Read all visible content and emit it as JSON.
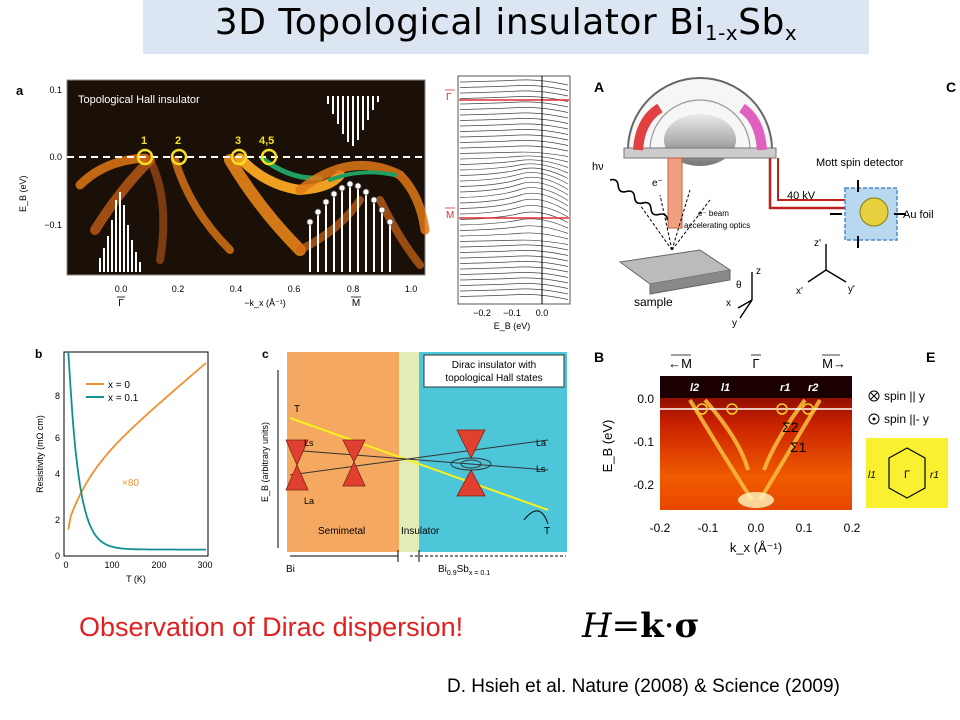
{
  "slide": {
    "title_main": "3D Topological insulator Bi",
    "title_sub1": "1-x",
    "title_mid": "Sb",
    "title_sub2": "x",
    "observation": "Observation of Dirac dispersion!",
    "equation": {
      "lhs": "H",
      "eq": "=",
      "k": "k",
      "dot": "·",
      "sigma": "σ"
    },
    "citation": "D. Hsieh et al. Nature (2008) & Science (2009)"
  },
  "panel_a": {
    "label": "a",
    "inset_title": "Topological Hall insulator",
    "crossings": [
      "1",
      "2",
      "3",
      "4,5"
    ],
    "y_axis_label": "E_B (eV)",
    "y_ticks": [
      "0.1",
      "0.0",
      "−0.1"
    ],
    "x_ticks": [
      "0.0",
      "0.2",
      "0.4",
      "0.6",
      "0.8",
      "1.0"
    ],
    "x_axis_label": "−k_x (Å⁻¹)",
    "gamma_label": "Γ",
    "m_label": "M",
    "colors": {
      "bg": "#1a1008",
      "band": "#f08a18",
      "hot": "#f8e040",
      "cool": "#20a060"
    }
  },
  "panel_edc": {
    "gamma_label": "Γ",
    "m_label": "M",
    "x_ticks": [
      "−0.2",
      "−0.1",
      "0.0"
    ],
    "x_axis_label": "E_B (eV)"
  },
  "panel_A": {
    "label": "A",
    "label_C": "C",
    "hv": "hν",
    "e_minus": "e⁻",
    "e_beam": "e⁻ beam",
    "beam_optics": "accelerating optics",
    "mott": "Mott spin detector",
    "kv": "40 kV",
    "au": "Au foil",
    "sample": "sample",
    "theta": "θ",
    "axes": {
      "x": "x",
      "y": "y",
      "z": "z",
      "xp": "x'",
      "yp": "y'",
      "zp": "z'"
    }
  },
  "panel_b": {
    "label": "b",
    "y_axis_label": "Resistivity (mΩ cm)",
    "x_axis_label": "T (K)",
    "legend": [
      "x = 0",
      "x = 0.1"
    ],
    "scale_note": "×80",
    "y_ticks": [
      "0",
      "2",
      "4",
      "6",
      "8"
    ],
    "x_ticks": [
      "0",
      "100",
      "200",
      "300"
    ]
  },
  "panel_c": {
    "label": "c",
    "dirac_box": "Dirac insulator with",
    "dirac_box2": "topological Hall states",
    "y_axis_label": "E_B (arbitrary units)",
    "semimetal": "Semimetal",
    "insulator": "Insulator",
    "bi": "Bi",
    "bisb_main": "Bi",
    "bisb_sub": "0.9",
    "bisb_sb": "Sb",
    "bisb_x": "x = 0.1",
    "T": "T",
    "Ls": "Ls",
    "La": "La",
    "colors": {
      "semimetal": "#f4a860",
      "insulator": "#e2ecb8",
      "dirac": "#4cc6d8"
    }
  },
  "panel_B": {
    "label": "B",
    "top_labels": [
      "←M",
      "Γ",
      "M→"
    ],
    "band_labels": [
      "l2",
      "l1",
      "r1",
      "r2"
    ],
    "sigma2": "Σ2",
    "sigma1": "Σ1",
    "y_axis_label": "E_B (eV)",
    "y_ticks": [
      "0.0",
      "-0.1",
      "-0.2"
    ],
    "x_ticks": [
      "-0.2",
      "-0.1",
      "0.0",
      "0.1",
      "0.2"
    ],
    "x_axis_label": "k_x (Å⁻¹)"
  },
  "panel_E": {
    "label": "E",
    "legend1": "spin || y",
    "legend2": "spin ||- y",
    "l1": "l1",
    "r1": "r1",
    "gamma": "Γ"
  }
}
